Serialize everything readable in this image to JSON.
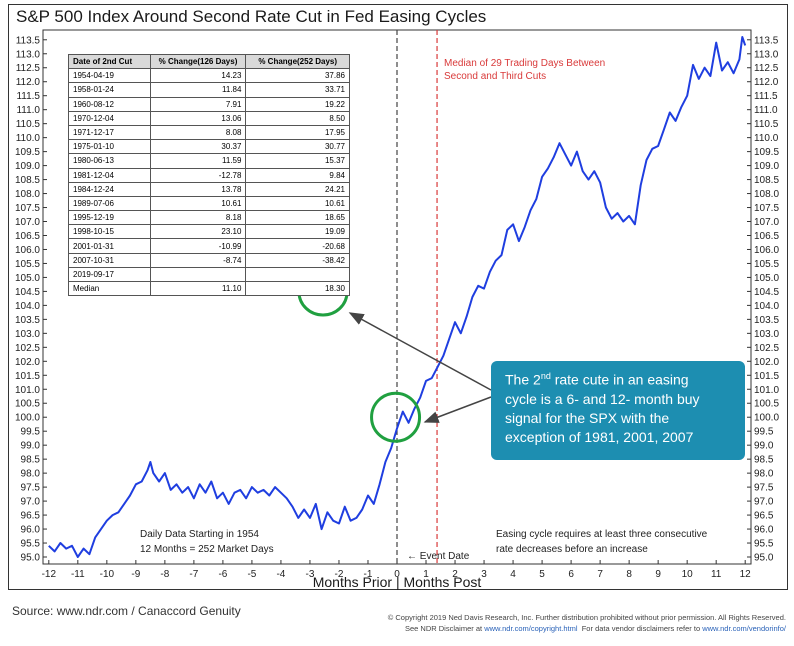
{
  "title": "S&P 500 Index Around Second Rate Cut in Fed Easing Cycles",
  "table": {
    "headers": [
      "Date of 2nd Cut",
      "% Change(126 Days)",
      "% Change(252 Days)"
    ],
    "rows": [
      [
        "1954-04-19",
        "14.23",
        "37.86"
      ],
      [
        "1958-01-24",
        "11.84",
        "33.71"
      ],
      [
        "1960-08-12",
        "7.91",
        "19.22"
      ],
      [
        "1970-12-04",
        "13.06",
        "8.50"
      ],
      [
        "1971-12-17",
        "8.08",
        "17.95"
      ],
      [
        "1975-01-10",
        "30.37",
        "30.77"
      ],
      [
        "1980-06-13",
        "11.59",
        "15.37"
      ],
      [
        "1981-12-04",
        "-12.78",
        "9.84"
      ],
      [
        "1984-12-24",
        "13.78",
        "24.21"
      ],
      [
        "1989-07-06",
        "10.61",
        "10.61"
      ],
      [
        "1995-12-19",
        "8.18",
        "18.65"
      ],
      [
        "1998-10-15",
        "23.10",
        "19.09"
      ],
      [
        "2001-01-31",
        "-10.99",
        "-20.68"
      ],
      [
        "2007-10-31",
        "-8.74",
        "-38.42"
      ],
      [
        "2019-09-17",
        "",
        ""
      ],
      [
        "Median",
        "11.10",
        "18.30"
      ]
    ]
  },
  "median_note": {
    "line1": "Median of 29 Trading Days Between",
    "line2": "Second and Third Cuts"
  },
  "callout": {
    "line1_pre": "The 2",
    "line1_sup": "nd",
    "line1_post": " rate cute in an easing",
    "line2": "cycle is a 6- and 12- month buy",
    "line3": "signal for the SPX with the",
    "line4": "exception of 1981, 2001, 2007"
  },
  "daily_note": {
    "line1": "Daily Data Starting in 1954",
    "line2": "12 Months = 252 Market Days"
  },
  "easing_note": {
    "line1": "Easing cycle requires at least three consecutive",
    "line2": "rate decreases before an increase"
  },
  "event_label": "← Event Date",
  "x_axis_title": "Months Prior | Months Post",
  "source": "Source: www.ndr.com / Canaccord Genuity",
  "copyright": {
    "line1": "© Copyright 2019 Ned Davis Research, Inc. Further distribution prohibited without prior permission. All Rights Reserved.",
    "line2_a": "See NDR Disclaimer at ",
    "line2_link1": "www.ndr.com/copyright.html",
    "line2_b": "  For data vendor disclaimers refer to ",
    "line2_link2": "www.ndr.com/vendorinfo/"
  },
  "colors": {
    "line": "#1f3ee0",
    "event_line": "#444444",
    "median_line": "#d93a3a",
    "callout_bg": "#1d8eb1",
    "circle": "#20a040",
    "arrow": "#444444"
  },
  "chart_data": {
    "type": "line",
    "title": "S&P 500 Index Around Second Rate Cut in Fed Easing Cycles",
    "xlabel": "Months Prior | Months Post",
    "ylabel": "",
    "xlim": [
      -12.2,
      12.2
    ],
    "ylim": [
      94.75,
      113.85
    ],
    "x_ticks": [
      -12,
      -11,
      -10,
      -9,
      -8,
      -7,
      -6,
      -5,
      -4,
      -3,
      -2,
      -1,
      0,
      1,
      2,
      3,
      4,
      5,
      6,
      7,
      8,
      9,
      10,
      11,
      12
    ],
    "y_ticks": [
      95.0,
      95.5,
      96.0,
      96.5,
      97.0,
      97.5,
      98.0,
      98.5,
      99.0,
      99.5,
      100.0,
      100.5,
      101.0,
      101.5,
      102.0,
      102.5,
      103.0,
      103.5,
      104.0,
      104.5,
      105.0,
      105.5,
      106.0,
      106.5,
      107.0,
      107.5,
      108.0,
      108.5,
      109.0,
      109.5,
      110.0,
      110.5,
      111.0,
      111.5,
      112.0,
      112.5,
      113.0,
      113.5
    ],
    "event_x": 0,
    "median_third_cut_x": 1.38,
    "grid": false,
    "series": [
      {
        "x": [
          -12.0,
          -11.8,
          -11.6,
          -11.4,
          -11.2,
          -11.0,
          -10.8,
          -10.6,
          -10.4,
          -10.2,
          -10.0,
          -9.8,
          -9.6,
          -9.4,
          -9.2,
          -9.0,
          -8.8,
          -8.6,
          -8.5,
          -8.4,
          -8.2,
          -8.0,
          -7.8,
          -7.6,
          -7.4,
          -7.2,
          -7.0,
          -6.8,
          -6.6,
          -6.4,
          -6.2,
          -6.0,
          -5.8,
          -5.6,
          -5.4,
          -5.2,
          -5.0,
          -4.8,
          -4.6,
          -4.4,
          -4.2,
          -4.0,
          -3.8,
          -3.6,
          -3.4,
          -3.2,
          -3.0,
          -2.8,
          -2.6,
          -2.4,
          -2.2,
          -2.0,
          -1.8,
          -1.6,
          -1.4,
          -1.2,
          -1.0,
          -0.8,
          -0.6,
          -0.4,
          -0.2,
          0.0,
          0.2,
          0.4,
          0.6,
          0.8,
          1.0,
          1.2,
          1.4,
          1.6,
          1.8,
          2.0,
          2.2,
          2.4,
          2.6,
          2.8,
          3.0,
          3.2,
          3.4,
          3.6,
          3.8,
          4.0,
          4.2,
          4.4,
          4.6,
          4.8,
          5.0,
          5.2,
          5.4,
          5.6,
          5.8,
          6.0,
          6.2,
          6.4,
          6.6,
          6.8,
          7.0,
          7.2,
          7.4,
          7.6,
          7.8,
          8.0,
          8.2,
          8.4,
          8.6,
          8.8,
          9.0,
          9.2,
          9.4,
          9.6,
          9.8,
          10.0,
          10.2,
          10.4,
          10.6,
          10.8,
          11.0,
          11.2,
          11.4,
          11.6,
          11.8,
          11.9,
          12.0
        ],
        "y": [
          95.4,
          95.2,
          95.5,
          95.3,
          95.4,
          95.0,
          95.3,
          95.1,
          95.7,
          96.0,
          96.3,
          96.5,
          96.6,
          96.9,
          97.2,
          97.6,
          97.7,
          98.1,
          98.4,
          98.0,
          97.7,
          98.0,
          97.4,
          97.6,
          97.3,
          97.5,
          97.1,
          97.6,
          97.3,
          97.7,
          97.1,
          97.3,
          96.9,
          97.3,
          97.4,
          97.1,
          97.5,
          97.3,
          97.4,
          97.2,
          97.5,
          97.3,
          97.1,
          96.8,
          96.4,
          96.7,
          96.4,
          96.9,
          96.0,
          96.6,
          96.3,
          96.2,
          96.8,
          96.3,
          96.4,
          96.7,
          97.2,
          96.9,
          97.6,
          98.4,
          98.9,
          99.6,
          100.2,
          99.8,
          100.3,
          100.7,
          101.3,
          101.4,
          101.8,
          102.2,
          102.8,
          103.4,
          103.0,
          103.6,
          104.3,
          104.7,
          104.6,
          105.2,
          105.6,
          105.8,
          106.7,
          106.9,
          106.3,
          106.8,
          107.4,
          107.8,
          108.6,
          108.9,
          109.3,
          109.8,
          109.4,
          109.0,
          109.5,
          108.8,
          108.5,
          108.8,
          108.4,
          107.5,
          107.1,
          107.3,
          107.0,
          107.2,
          106.9,
          108.3,
          109.2,
          109.6,
          109.7,
          110.3,
          110.9,
          110.6,
          111.1,
          111.5,
          112.6,
          112.1,
          112.5,
          112.2,
          113.4,
          112.4,
          112.7,
          112.3,
          112.8,
          113.6,
          113.3
        ]
      }
    ]
  }
}
